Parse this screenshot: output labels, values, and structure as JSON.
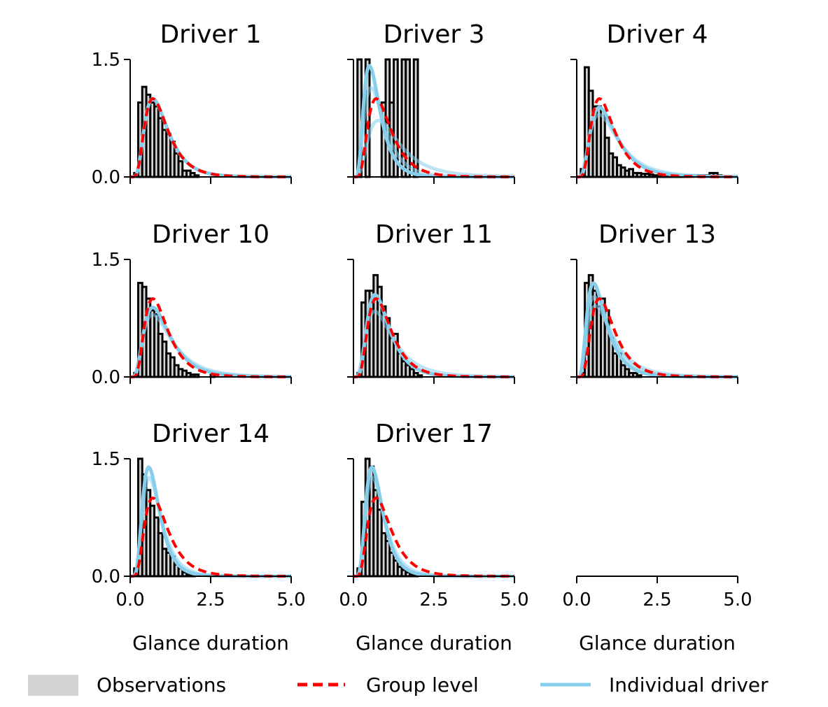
{
  "chart_data": {
    "type": "histogram-with-density",
    "x_label": "Glance duration",
    "xlim": [
      0,
      5
    ],
    "ylim": [
      0,
      1.5
    ],
    "x_ticks": [
      "0.0",
      "2.5",
      "5.0"
    ],
    "y_ticks": [
      "0.0",
      "1.5"
    ],
    "colors": {
      "observations": "#d3d3d3",
      "bar_edge": "#000000",
      "group": "#ff0000",
      "individual": "#87ceeb"
    },
    "legend": {
      "placement": "bottom-center",
      "items": [
        {
          "label": "Observations",
          "style": "patch",
          "color": "#d3d3d3"
        },
        {
          "label": "Group level",
          "style": "dashed-line",
          "color": "#ff0000"
        },
        {
          "label": "Individual driver",
          "style": "line",
          "color": "#87ceeb"
        }
      ]
    },
    "group_curve": {
      "mu": -0.1,
      "sigma": 0.5
    },
    "panels": [
      {
        "title": "Driver 1",
        "bin_width": 0.125,
        "hist": [
          0,
          0.05,
          0.95,
          1.15,
          1.05,
          0.95,
          0.9,
          0.75,
          0.6,
          0.55,
          0.45,
          0.3,
          0.2,
          0.08,
          0.08,
          0.05,
          0.02,
          0,
          0,
          0,
          0,
          0,
          0,
          0,
          0,
          0,
          0,
          0,
          0,
          0,
          0,
          0,
          0,
          0,
          0,
          0,
          0,
          0,
          0,
          0
        ],
        "individual": [
          {
            "mu": -0.1,
            "sigma": 0.5
          }
        ]
      },
      {
        "title": "Driver 3",
        "bin_width": 0.125,
        "hist": [
          0,
          1.5,
          0,
          1.5,
          0,
          0,
          0,
          0.95,
          1.5,
          0.95,
          1.5,
          0,
          1.5,
          1.5,
          0,
          1.5,
          0,
          0,
          0,
          0,
          0,
          0,
          0,
          0,
          0,
          0,
          0,
          0,
          0,
          0,
          0,
          0,
          0,
          0,
          0,
          0,
          0,
          0,
          0,
          0
        ],
        "individual": [
          {
            "mu": -0.45,
            "sigma": 0.5
          },
          {
            "mu": -0.3,
            "sigma": 0.55
          },
          {
            "mu": 0.1,
            "sigma": 0.6
          }
        ]
      },
      {
        "title": "Driver 4",
        "bin_width": 0.125,
        "hist": [
          0,
          0.1,
          1.4,
          1.1,
          0.9,
          0.9,
          0.85,
          0.5,
          0.3,
          0.25,
          0.15,
          0.12,
          0.08,
          0.1,
          0.05,
          0.05,
          0.04,
          0.04,
          0.03,
          0.02,
          0.02,
          0.02,
          0.02,
          0.02,
          0.02,
          0.02,
          0.02,
          0.02,
          0.02,
          0.02,
          0.02,
          0.02,
          0.02,
          0.05,
          0.05,
          0.02,
          0,
          0,
          0,
          0
        ],
        "individual": [
          {
            "mu": -0.05,
            "sigma": 0.55
          },
          {
            "mu": 0.0,
            "sigma": 0.6
          }
        ]
      },
      {
        "title": "Driver 10",
        "bin_width": 0.125,
        "hist": [
          0,
          0.05,
          1.2,
          1.15,
          1.0,
          0.85,
          0.8,
          0.55,
          0.45,
          0.3,
          0.25,
          0.15,
          0.1,
          0.08,
          0.05,
          0.03,
          0.03,
          0,
          0,
          0,
          0.05,
          0,
          0,
          0,
          0,
          0,
          0,
          0,
          0,
          0,
          0,
          0,
          0,
          0,
          0,
          0,
          0,
          0,
          0,
          0
        ],
        "individual": [
          {
            "mu": -0.05,
            "sigma": 0.55
          },
          {
            "mu": 0.0,
            "sigma": 0.6
          }
        ]
      },
      {
        "title": "Driver 11",
        "bin_width": 0.125,
        "hist": [
          0,
          0.05,
          0.95,
          1.1,
          1.1,
          1.3,
          1.15,
          0.9,
          0.75,
          0.5,
          0.55,
          0.3,
          0.2,
          0.15,
          0.1,
          0.05,
          0.02,
          0,
          0,
          0,
          0,
          0,
          0,
          0,
          0,
          0,
          0,
          0,
          0,
          0,
          0,
          0,
          0,
          0,
          0,
          0,
          0,
          0,
          0,
          0
        ],
        "individual": [
          {
            "mu": -0.15,
            "sigma": 0.5
          },
          {
            "mu": -0.05,
            "sigma": 0.6
          }
        ]
      },
      {
        "title": "Driver 13",
        "bin_width": 0.125,
        "hist": [
          0,
          0.05,
          1.2,
          1.3,
          1.1,
          0.9,
          1.0,
          0.85,
          0.5,
          0.3,
          0.3,
          0.15,
          0.1,
          0.05,
          0.05,
          0.02,
          0,
          0,
          0,
          0,
          0,
          0,
          0,
          0,
          0,
          0,
          0,
          0,
          0,
          0,
          0,
          0,
          0,
          0,
          0,
          0,
          0,
          0,
          0,
          0
        ],
        "individual": [
          {
            "mu": -0.35,
            "sigma": 0.55
          },
          {
            "mu": -0.25,
            "sigma": 0.6
          },
          {
            "mu": -0.15,
            "sigma": 0.62
          }
        ]
      },
      {
        "title": "Driver 14",
        "bin_width": 0.125,
        "hist": [
          0,
          0.1,
          1.5,
          1.3,
          1.1,
          0.9,
          0.75,
          0.55,
          0.35,
          0.3,
          0.25,
          0.15,
          0.1,
          0.05,
          0.02,
          0.03,
          0,
          0,
          0,
          0,
          0,
          0,
          0,
          0,
          0,
          0,
          0,
          0,
          0,
          0,
          0,
          0,
          0,
          0,
          0,
          0,
          0,
          0,
          0,
          0
        ],
        "individual": [
          {
            "mu": -0.35,
            "sigma": 0.45
          },
          {
            "mu": -0.3,
            "sigma": 0.48
          }
        ]
      },
      {
        "title": "Driver 17",
        "bin_width": 0.125,
        "hist": [
          0,
          0.1,
          0.95,
          1.5,
          1.4,
          1.1,
          0.85,
          0.55,
          0.45,
          0.3,
          0.2,
          0.12,
          0.08,
          0.05,
          0.02,
          0.02,
          0,
          0,
          0,
          0,
          0,
          0,
          0,
          0,
          0,
          0,
          0,
          0,
          0,
          0,
          0,
          0,
          0,
          0,
          0,
          0,
          0,
          0,
          0,
          0
        ],
        "individual": [
          {
            "mu": -0.35,
            "sigma": 0.45
          },
          {
            "mu": -0.3,
            "sigma": 0.48
          }
        ]
      },
      {
        "title": "",
        "bin_width": 0.125,
        "hist": [],
        "individual": []
      }
    ]
  }
}
